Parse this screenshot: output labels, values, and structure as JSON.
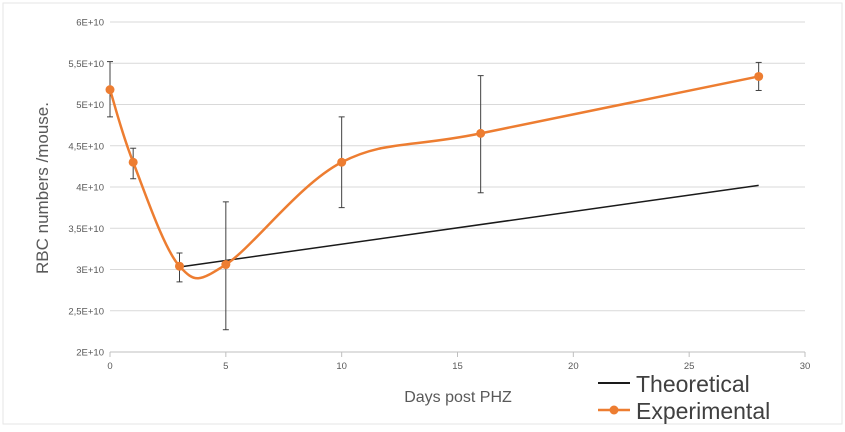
{
  "chart_data": {
    "type": "line",
    "title": "",
    "xlabel": "Days post PHZ",
    "ylabel": "RBC numbers /mouse.",
    "xlim": [
      0,
      30
    ],
    "ylim": [
      20000000000,
      60000000000
    ],
    "x_ticks": [
      0,
      5,
      10,
      15,
      20,
      25,
      30
    ],
    "x_tick_labels": [
      "0",
      "5",
      "10",
      "15",
      "20",
      "25",
      "30"
    ],
    "y_ticks": [
      20000000000,
      25000000000,
      30000000000,
      35000000000,
      40000000000,
      45000000000,
      50000000000,
      55000000000,
      60000000000
    ],
    "y_tick_labels": [
      "2E+10",
      "2,5E+10",
      "3E+10",
      "3,5E+10",
      "4E+10",
      "4,5E+10",
      "5E+10",
      "5,5E+10",
      "6E+10"
    ],
    "grid": "horizontal",
    "legend_position": "bottom-right",
    "series": [
      {
        "name": "Theoretical",
        "color": "#1a1a1a",
        "smooth": false,
        "markers": false,
        "x": [
          3,
          28
        ],
        "values": [
          30300000000,
          40200000000
        ]
      },
      {
        "name": "Experimental",
        "color": "#ed7d31",
        "smooth": true,
        "markers": true,
        "x": [
          0,
          1,
          3,
          5,
          10,
          16,
          28
        ],
        "values": [
          51800000000,
          43000000000,
          30400000000,
          30600000000,
          43000000000,
          46500000000,
          53400000000
        ],
        "error_low": [
          48500000000,
          41000000000,
          28500000000,
          22700000000,
          37500000000,
          39300000000,
          51700000000
        ],
        "error_high": [
          55200000000,
          44700000000,
          32000000000,
          38200000000,
          48500000000,
          53500000000,
          55100000000
        ]
      }
    ]
  }
}
